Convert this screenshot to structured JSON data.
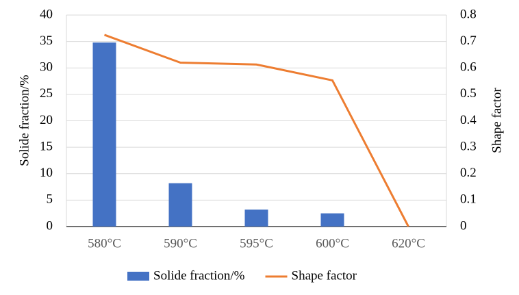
{
  "chart_data": {
    "type": "combo",
    "categories": [
      "580°C",
      "590°C",
      "595°C",
      "600°C",
      "620°C"
    ],
    "y_label": "Solide fraction/%",
    "y2_label": "Shape factor",
    "series": [
      {
        "name": "Solide fraction/%",
        "type": "bar",
        "color": "#4472c4",
        "values": [
          34.8,
          8.2,
          3.2,
          2.5,
          0
        ]
      },
      {
        "name": "Shape factor",
        "type": "line",
        "axis": "y2",
        "color": "#ed7d31",
        "values": [
          0.725,
          0.62,
          0.613,
          0.553,
          0
        ]
      }
    ],
    "ylim": [
      0,
      40
    ],
    "yticks": [
      0,
      5,
      10,
      15,
      20,
      25,
      30,
      35,
      40
    ],
    "y2lim": [
      0,
      0.8
    ],
    "y2ticks": [
      0,
      0.1,
      0.2,
      0.3,
      0.4,
      0.5,
      0.6,
      0.7,
      0.8
    ],
    "grid": true,
    "legend": "bottom"
  }
}
